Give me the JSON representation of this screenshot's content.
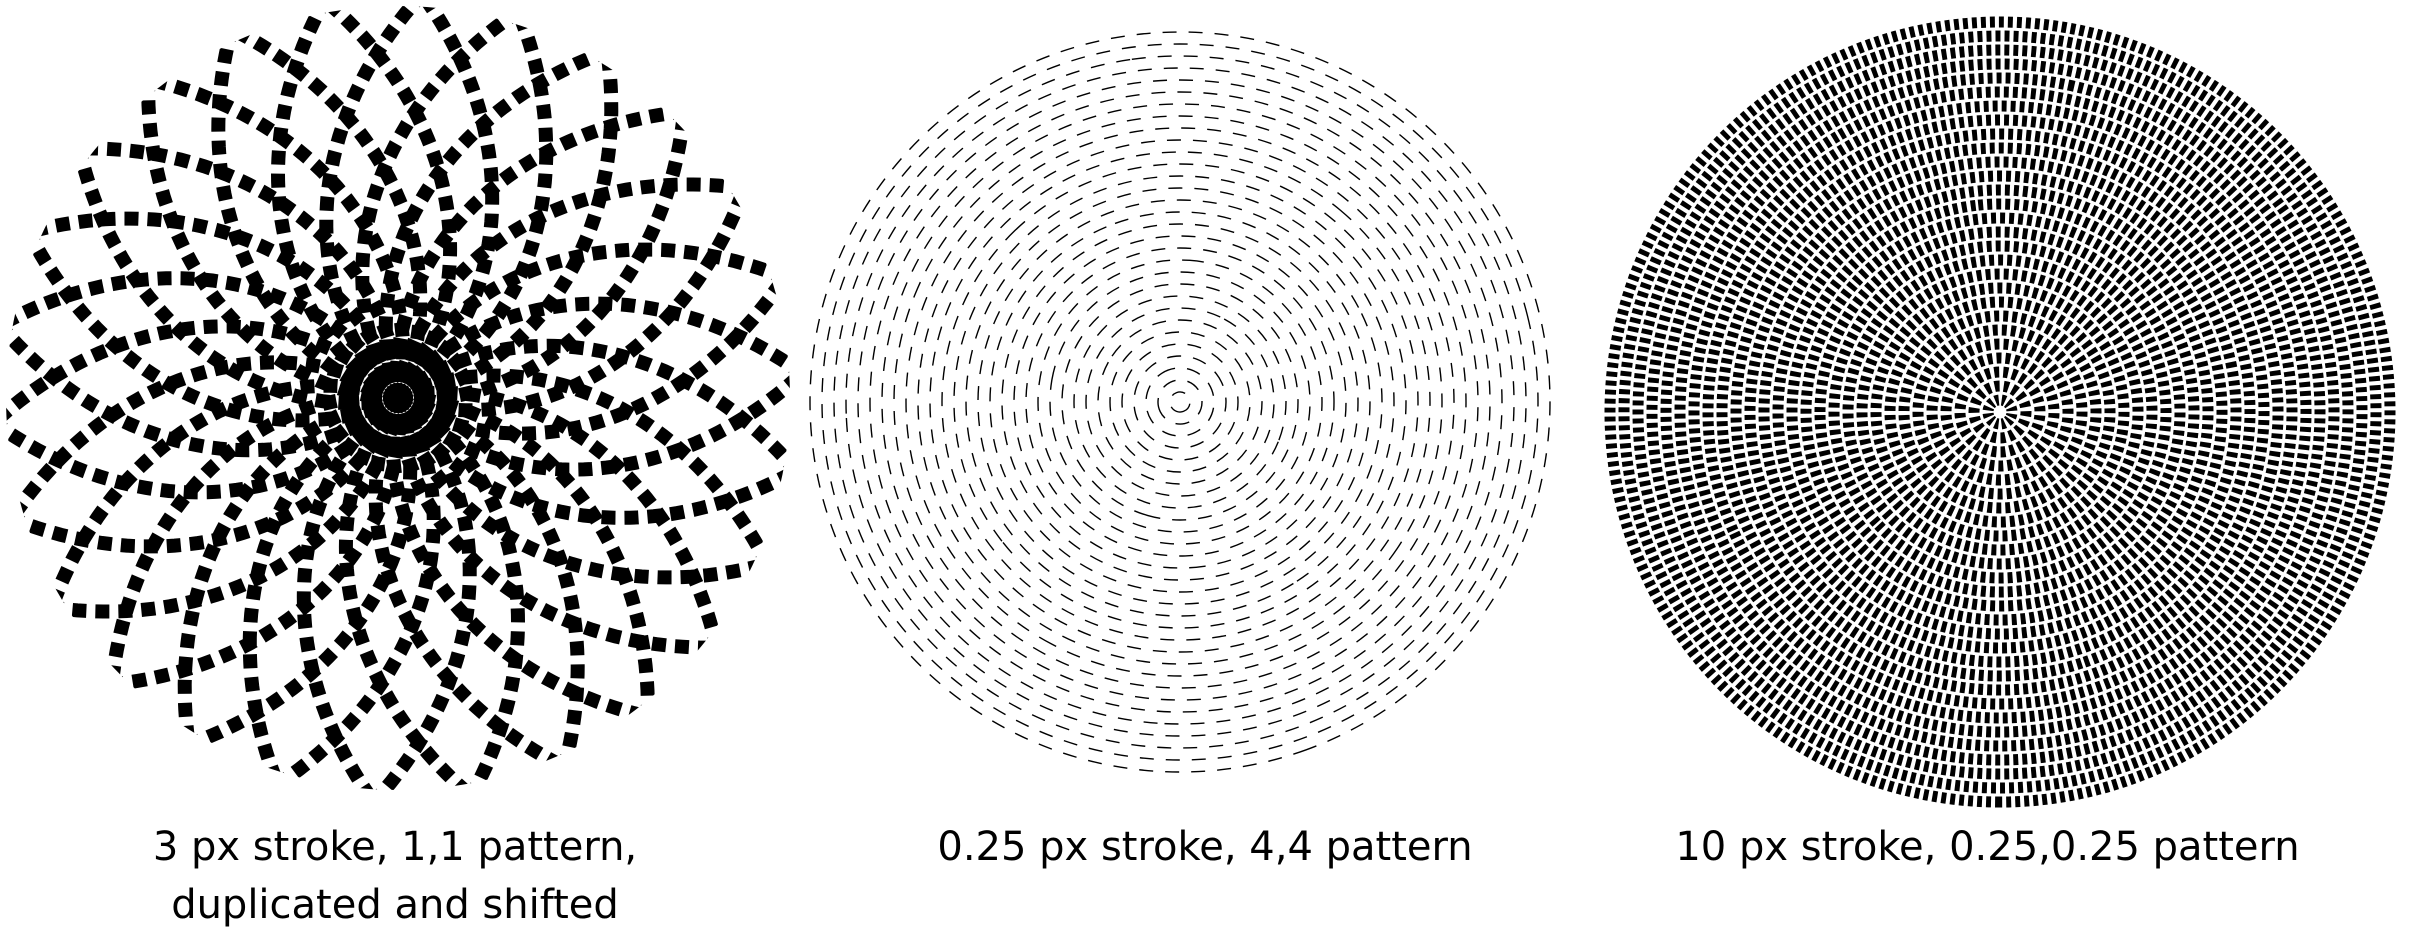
{
  "panels": [
    {
      "caption": [
        "3 px stroke,  1,1 pattern,",
        "duplicated and shifted"
      ],
      "stroke_width": 3,
      "dash_pattern": [
        1,
        1
      ],
      "duplicated": true,
      "fill": "#000000"
    },
    {
      "caption": [
        "0.25 px stroke,  4,4 pattern"
      ],
      "stroke_width": 0.25,
      "dash_pattern": [
        4,
        4
      ],
      "duplicated": false,
      "fill": "#000000"
    },
    {
      "caption": [
        "10 px stroke,  0.25,0.25 pattern"
      ],
      "stroke_width": 10,
      "dash_pattern": [
        0.25,
        0.25
      ],
      "duplicated": false,
      "fill": "#000000"
    }
  ]
}
